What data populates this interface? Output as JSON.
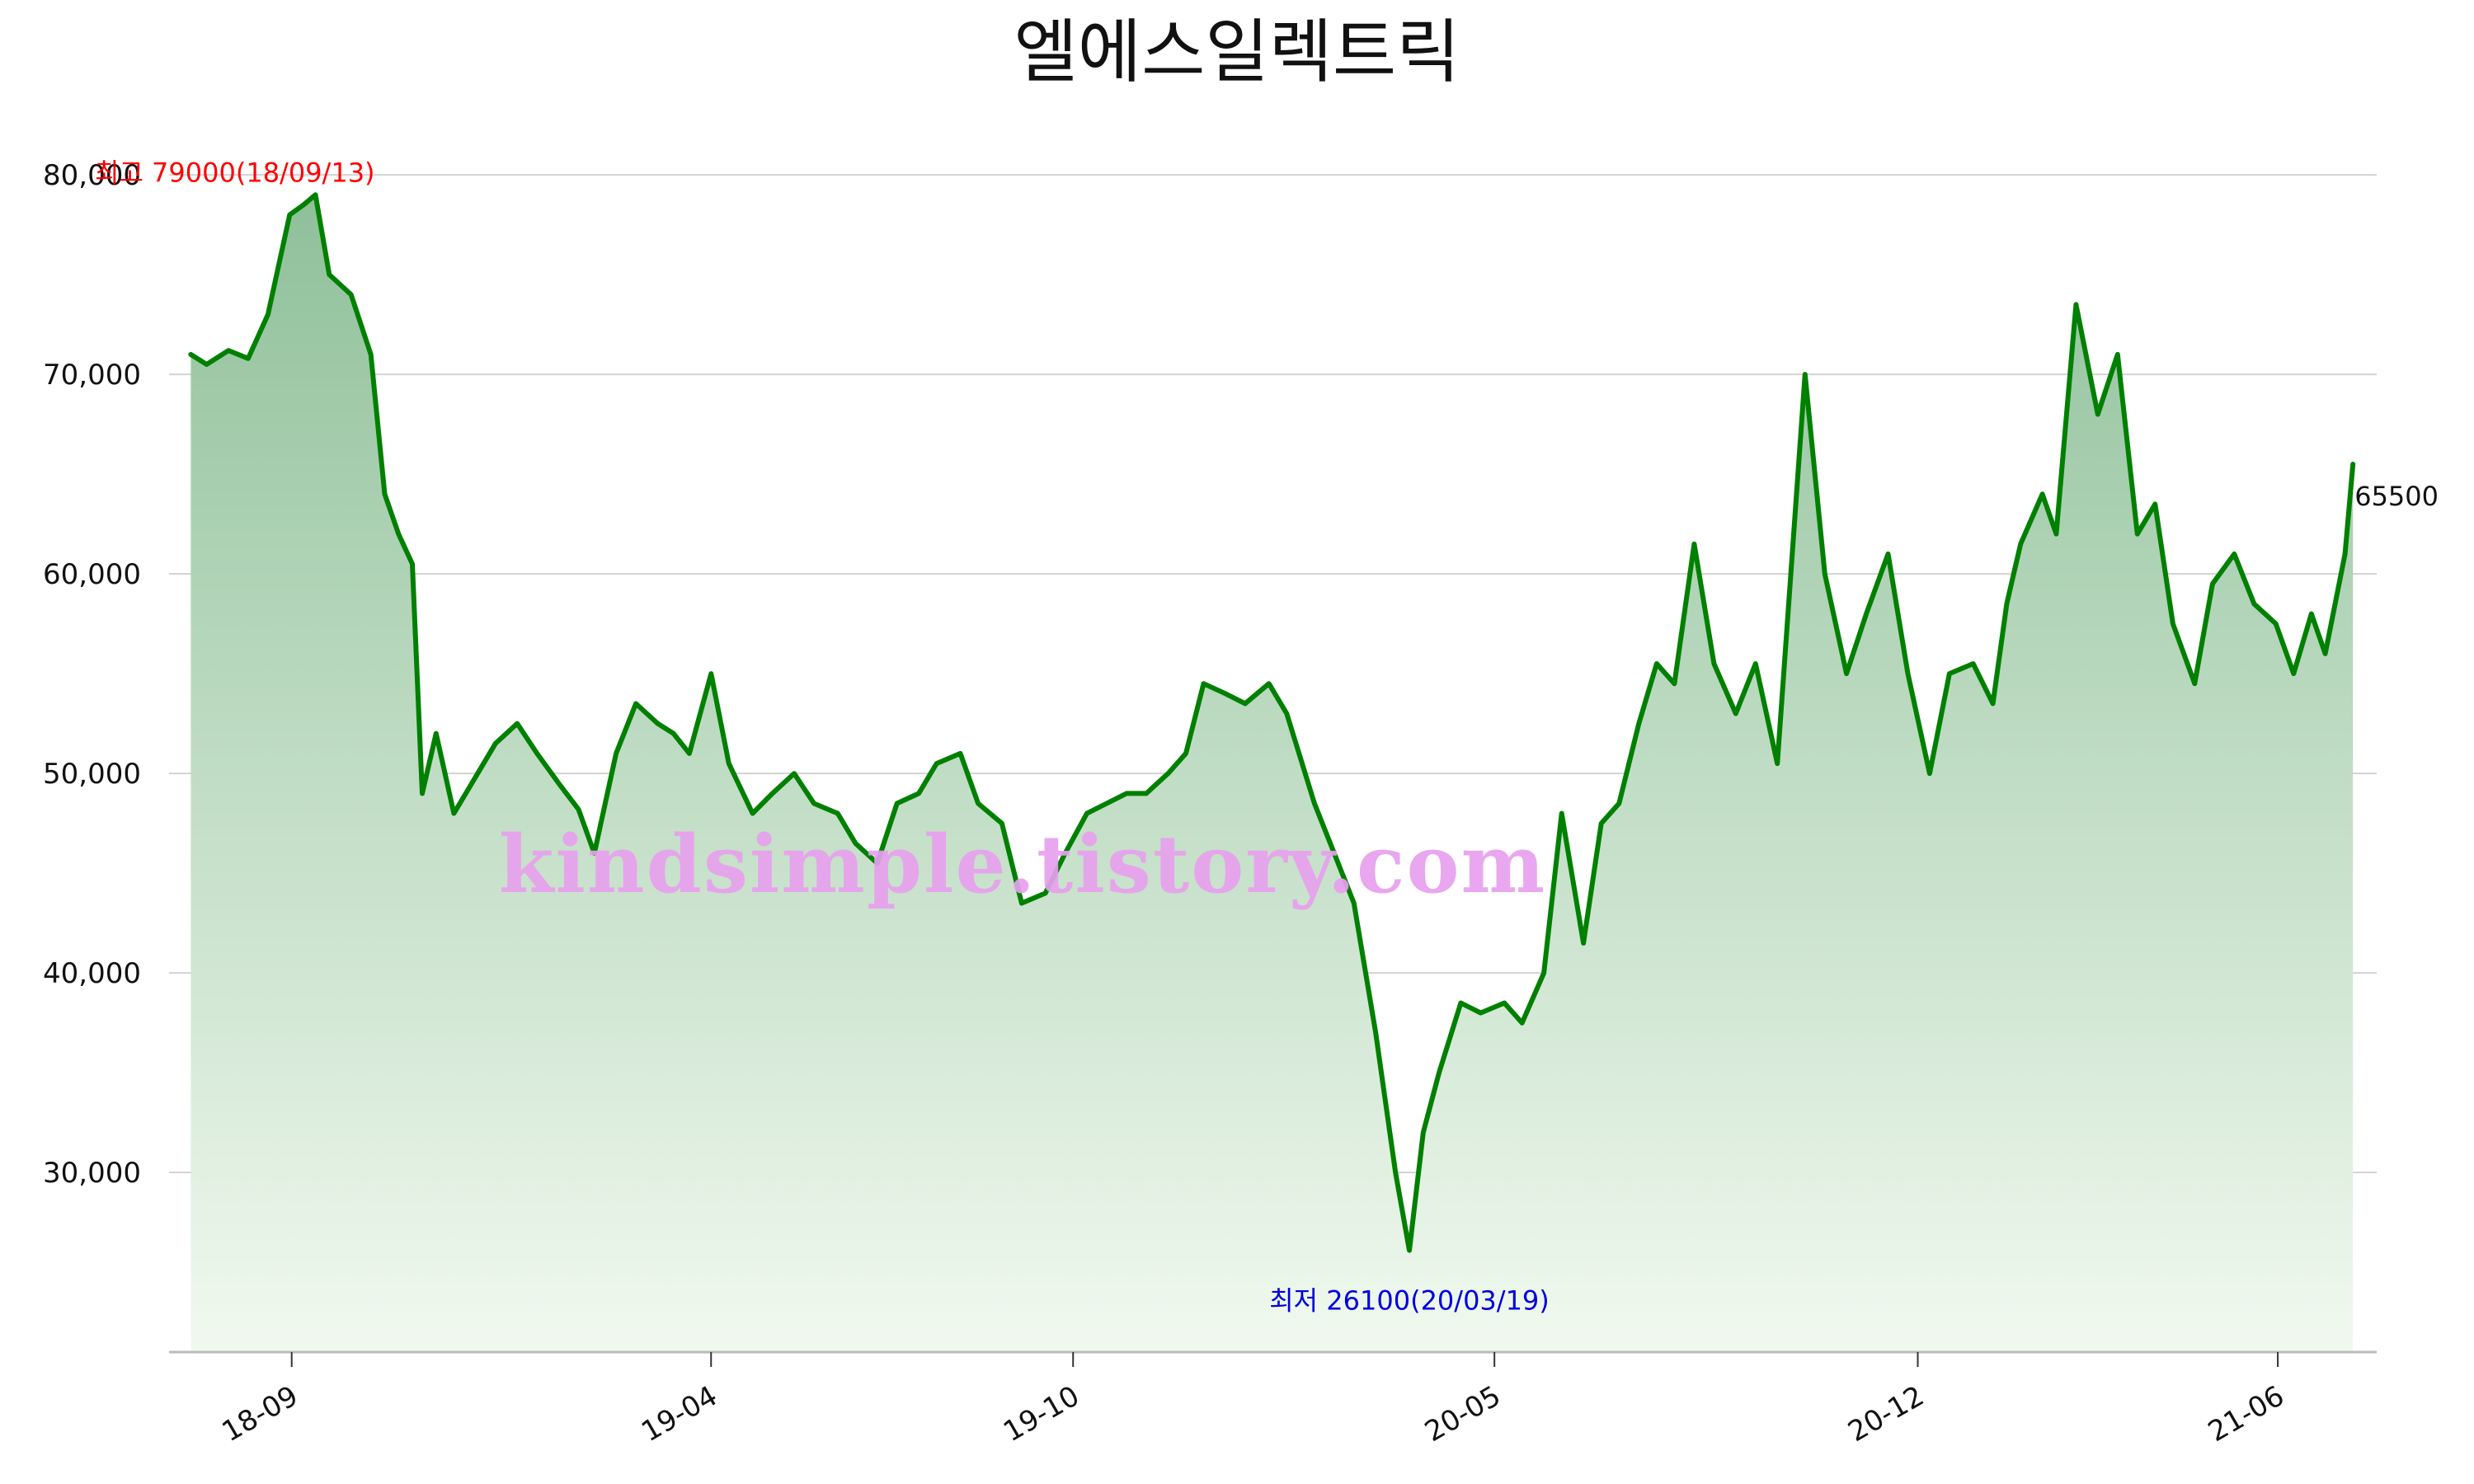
{
  "chart_data": {
    "type": "area",
    "title": "엘에스일렉트릭",
    "xlabel": "",
    "ylabel": "",
    "x_start": "2018-07",
    "x_end": "2021-07",
    "ylim": [
      21000,
      80500
    ],
    "yticks": [
      30000,
      40000,
      50000,
      60000,
      70000,
      80000
    ],
    "ytick_labels": [
      "30,000",
      "40,000",
      "50,000",
      "60,000",
      "70,000",
      "80,000"
    ],
    "xticks": [
      "2018-09",
      "2019-04",
      "2019-10",
      "2020-05",
      "2020-12",
      "2021-06"
    ],
    "xtick_labels": [
      "18-09",
      "19-04",
      "19-10",
      "20-05",
      "20-12",
      "21-06"
    ],
    "grid": true,
    "line_color": "#008000",
    "fill_top_color": "#8fc09a",
    "fill_bottom_color": "#f1f9ef",
    "series": [
      {
        "x": [
          "2018-07-12",
          "2018-07-20",
          "2018-07-31",
          "2018-08-10",
          "2018-08-20",
          "2018-08-31",
          "2018-09-07",
          "2018-09-13",
          "2018-09-20",
          "2018-10-01",
          "2018-10-11",
          "2018-10-18",
          "2018-10-25",
          "2018-11-01",
          "2018-11-06",
          "2018-11-13",
          "2018-11-22",
          "2018-12-04",
          "2018-12-13",
          "2018-12-24",
          "2019-01-03",
          "2019-01-14",
          "2019-01-24",
          "2019-02-01",
          "2019-02-12",
          "2019-02-22",
          "2019-03-05",
          "2019-03-13",
          "2019-03-21",
          "2019-04-01",
          "2019-04-10",
          "2019-04-22",
          "2019-05-02",
          "2019-05-13",
          "2019-05-23",
          "2019-06-04",
          "2019-06-13",
          "2019-06-24",
          "2019-07-04",
          "2019-07-15",
          "2019-07-24",
          "2019-08-05",
          "2019-08-14",
          "2019-08-26",
          "2019-09-05",
          "2019-09-17",
          "2019-09-27",
          "2019-10-08",
          "2019-10-18",
          "2019-10-28",
          "2019-11-07",
          "2019-11-18",
          "2019-11-27",
          "2019-12-06",
          "2019-12-17",
          "2019-12-27",
          "2020-01-08",
          "2020-01-17",
          "2020-01-31",
          "2020-02-10",
          "2020-02-20",
          "2020-03-02",
          "2020-03-12",
          "2020-03-19",
          "2020-03-26",
          "2020-04-03",
          "2020-04-14",
          "2020-04-24",
          "2020-05-06",
          "2020-05-15",
          "2020-05-26",
          "2020-06-04",
          "2020-06-15",
          "2020-06-24",
          "2020-07-03",
          "2020-07-13",
          "2020-07-22",
          "2020-07-31",
          "2020-08-10",
          "2020-08-20",
          "2020-08-31",
          "2020-09-10",
          "2020-09-21",
          "2020-10-05",
          "2020-10-15",
          "2020-10-26",
          "2020-11-05",
          "2020-11-16",
          "2020-11-26",
          "2020-12-07",
          "2020-12-17",
          "2020-12-29",
          "2021-01-08",
          "2021-01-15",
          "2021-01-22",
          "2021-02-02",
          "2021-02-09",
          "2021-02-19",
          "2021-03-02",
          "2021-03-12",
          "2021-03-22",
          "2021-03-31",
          "2021-04-09",
          "2021-04-20",
          "2021-04-29",
          "2021-05-10",
          "2021-05-20",
          "2021-05-31",
          "2021-06-09",
          "2021-06-18",
          "2021-06-25",
          "2021-07-05",
          "2021-07-09"
        ],
        "values": [
          71000,
          70500,
          71200,
          70800,
          73000,
          78000,
          78500,
          79000,
          75000,
          74000,
          71000,
          64000,
          62000,
          60500,
          49000,
          52000,
          48000,
          50000,
          51500,
          52500,
          51000,
          49500,
          48200,
          46000,
          51000,
          53500,
          52500,
          52000,
          51000,
          55000,
          50500,
          48000,
          49000,
          50000,
          48500,
          48000,
          46500,
          45500,
          48500,
          49000,
          50500,
          51000,
          48500,
          47500,
          43500,
          44000,
          46000,
          48000,
          48500,
          49000,
          49000,
          50000,
          51000,
          54500,
          54000,
          53500,
          54500,
          53000,
          48500,
          46000,
          43500,
          37000,
          30000,
          26100,
          32000,
          35000,
          38500,
          38000,
          38500,
          37500,
          40000,
          48000,
          41500,
          47500,
          48500,
          52500,
          55500,
          54500,
          61500,
          55500,
          53000,
          55500,
          50500,
          70000,
          60000,
          55000,
          58000,
          61000,
          55000,
          50000,
          55000,
          55500,
          53500,
          58500,
          61500,
          64000,
          62000,
          73500,
          68000,
          71000,
          62000,
          63500,
          57500,
          54500,
          59500,
          61000,
          58500,
          57500,
          55000,
          58000,
          56000,
          61000,
          65500
        ]
      }
    ],
    "annotations": {
      "max_label": "최고 79000(18/09/13)",
      "max_color": "#ff0000",
      "min_label": "최저 26100(20/03/19)",
      "min_color": "#0000dd",
      "last_label": "65500"
    },
    "watermark": {
      "text": "kindsimple.tistory.com",
      "color": "#e8a0ee"
    }
  }
}
